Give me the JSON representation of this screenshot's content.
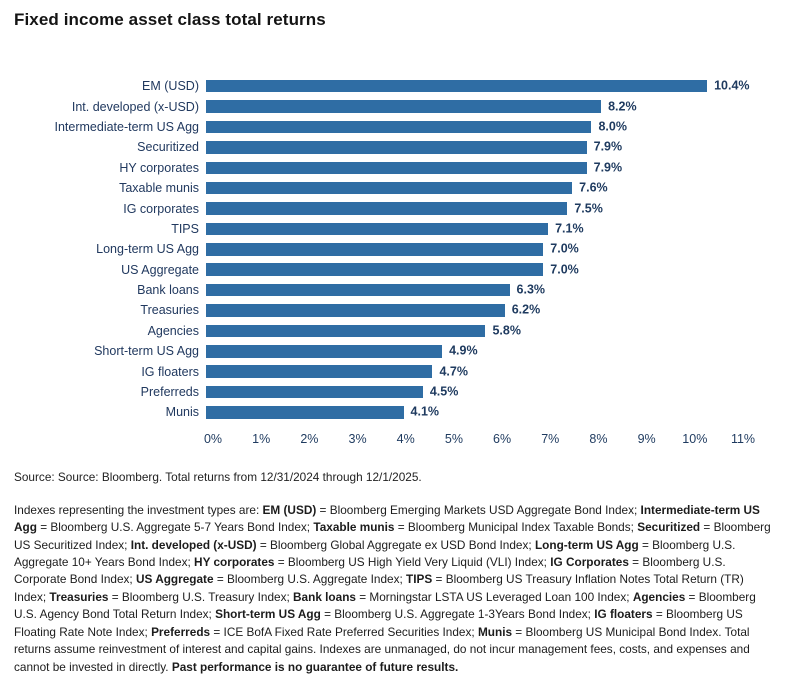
{
  "page": {
    "title": "Fixed income asset class total returns",
    "source": "Source: Source: Bloomberg. Total returns from 12/31/2024 through 12/1/2025."
  },
  "chart_data": {
    "type": "bar",
    "orientation": "horizontal",
    "title": "Fixed income asset class total returns",
    "categories": [
      "EM (USD)",
      "Int. developed (x-USD)",
      "Intermediate-term US Agg",
      "Securitized",
      "HY corporates",
      "Taxable munis",
      "IG corporates",
      "TIPS",
      "Long-term US Agg",
      "US Aggregate",
      "Bank loans",
      "Treasuries",
      "Agencies",
      "Short-term US Agg",
      "IG floaters",
      "Preferreds",
      "Munis"
    ],
    "values": [
      10.4,
      8.2,
      8.0,
      7.9,
      7.9,
      7.6,
      7.5,
      7.1,
      7.0,
      7.0,
      6.3,
      6.2,
      5.8,
      4.9,
      4.7,
      4.5,
      4.1
    ],
    "value_labels": [
      "10.4%",
      "8.2%",
      "8.0%",
      "7.9%",
      "7.9%",
      "7.6%",
      "7.5%",
      "7.1%",
      "7.0%",
      "7.0%",
      "6.3%",
      "6.2%",
      "5.8%",
      "4.9%",
      "4.7%",
      "4.5%",
      "4.1%"
    ],
    "xlim": [
      0,
      11
    ],
    "x_ticks": [
      "0%",
      "1%",
      "2%",
      "3%",
      "4%",
      "5%",
      "6%",
      "7%",
      "8%",
      "9%",
      "10%",
      "11%"
    ],
    "grid": false,
    "legend": false,
    "bar_color": "#2f6da4",
    "label_color": "#21395f"
  },
  "footnote": {
    "segments": [
      {
        "text": "Indexes representing the investment types are: ",
        "bold": false
      },
      {
        "text": "EM (USD)",
        "bold": true
      },
      {
        "text": " = Bloomberg Emerging Markets USD Aggregate Bond Index; ",
        "bold": false
      },
      {
        "text": "Intermediate-term US Agg",
        "bold": true
      },
      {
        "text": " = Bloomberg U.S. Aggregate 5-7 Years Bond Index; ",
        "bold": false
      },
      {
        "text": "Taxable munis",
        "bold": true
      },
      {
        "text": " = Bloomberg Municipal Index Taxable Bonds; ",
        "bold": false
      },
      {
        "text": "Securitized",
        "bold": true
      },
      {
        "text": " = Bloomberg US Securitized Index; ",
        "bold": false
      },
      {
        "text": "Int. developed (x-USD)",
        "bold": true
      },
      {
        "text": " = Bloomberg Global Aggregate ex USD Bond Index; ",
        "bold": false
      },
      {
        "text": "Long-term US Agg",
        "bold": true
      },
      {
        "text": " = Bloomberg U.S. Aggregate 10+ Years Bond Index; ",
        "bold": false
      },
      {
        "text": "HY corporates",
        "bold": true
      },
      {
        "text": " = Bloomberg US High Yield Very Liquid (VLI) Index; ",
        "bold": false
      },
      {
        "text": "IG Corporates",
        "bold": true
      },
      {
        "text": " = Bloomberg U.S. Corporate Bond Index; ",
        "bold": false
      },
      {
        "text": "US Aggregate",
        "bold": true
      },
      {
        "text": " = Bloomberg U.S. Aggregate Index; ",
        "bold": false
      },
      {
        "text": "TIPS",
        "bold": true
      },
      {
        "text": " =  Bloomberg US Treasury Inflation Notes Total Return (TR) Index; ",
        "bold": false
      },
      {
        "text": "Treasuries",
        "bold": true
      },
      {
        "text": " = Bloomberg U.S. Treasury Index; ",
        "bold": false
      },
      {
        "text": "Bank loans",
        "bold": true
      },
      {
        "text": " = Morningstar LSTA US Leveraged Loan 100 Index; ",
        "bold": false
      },
      {
        "text": "Agencies",
        "bold": true
      },
      {
        "text": " =  Bloomberg U.S. Agency Bond Total Return Index; ",
        "bold": false
      },
      {
        "text": "Short-term US Agg",
        "bold": true
      },
      {
        "text": " =  Bloomberg U.S. Aggregate 1-3Years Bond Index; ",
        "bold": false
      },
      {
        "text": "IG floaters",
        "bold": true
      },
      {
        "text": " = Bloomberg US Floating Rate Note Index; ",
        "bold": false
      },
      {
        "text": "Preferreds",
        "bold": true
      },
      {
        "text": " = ICE BofA Fixed Rate Preferred Securities Index; ",
        "bold": false
      },
      {
        "text": "Munis",
        "bold": true
      },
      {
        "text": " = Bloomberg US Municipal Bond Index. Total returns assume reinvestment of interest and capital gains. Indexes are unmanaged, do not incur management fees, costs, and expenses and cannot be invested in directly. ",
        "bold": false
      },
      {
        "text": "Past performance is no guarantee of future results.",
        "bold": true
      }
    ]
  }
}
